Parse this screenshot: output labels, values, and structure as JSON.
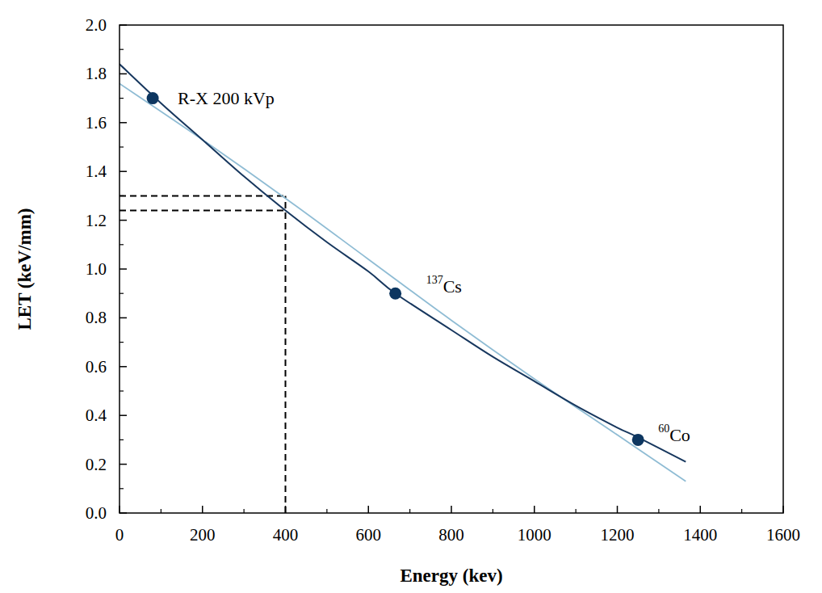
{
  "chart_data": {
    "type": "line",
    "x_label": "Energy (kev)",
    "y_label": "LET (keV/mm)",
    "xlim": [
      0,
      1600
    ],
    "ylim": [
      0,
      2.0
    ],
    "xticks": [
      0,
      200,
      400,
      600,
      800,
      1000,
      1200,
      1400,
      1600
    ],
    "yticks": [
      {
        "value": 0,
        "label": "0.0"
      },
      {
        "value": 0.2,
        "label": "0.2"
      },
      {
        "value": 0.4,
        "label": "0.4"
      },
      {
        "value": 0.6,
        "label": "0.6"
      },
      {
        "value": 0.8,
        "label": "0.8"
      },
      {
        "value": 1.0,
        "label": "1.0"
      },
      {
        "value": 1.2,
        "label": "1.2"
      },
      {
        "value": 1.4,
        "label": "1.4"
      },
      {
        "value": 1.6,
        "label": "1.6"
      },
      {
        "value": 1.8,
        "label": "1.8"
      },
      {
        "value": 2.0,
        "label": "2.0"
      }
    ],
    "grid": false,
    "series": [
      {
        "color": "#17375e",
        "line_style": "solid",
        "x": [
          0,
          100,
          200,
          300,
          400,
          500,
          600,
          665,
          800,
          900,
          1000,
          1100,
          1200,
          1250,
          1365
        ],
        "values": [
          1.84,
          1.68,
          1.53,
          1.38,
          1.24,
          1.11,
          0.99,
          0.9,
          0.75,
          0.64,
          0.54,
          0.44,
          0.35,
          0.31,
          0.21
        ]
      },
      {
        "color": "#8fbcd4",
        "line_style": "solid",
        "x": [
          0,
          200,
          400,
          600,
          800,
          1000,
          1200,
          1365
        ],
        "values": [
          1.76,
          1.53,
          1.29,
          1.04,
          0.79,
          0.55,
          0.32,
          0.13
        ]
      }
    ],
    "points": {
      "type": "scatter",
      "marker": "circle",
      "color": "#0d3660",
      "x": [
        80,
        665,
        1250
      ],
      "values": [
        1.7,
        0.9,
        0.3
      ],
      "label_sup": [
        "",
        "137",
        "60"
      ],
      "labels": [
        "R-X 200 kVp",
        "Cs",
        "Co"
      ]
    },
    "reference": {
      "line_style": "dashed",
      "color": "#000000",
      "x": 400,
      "y": [
        1.3,
        1.24
      ]
    }
  }
}
